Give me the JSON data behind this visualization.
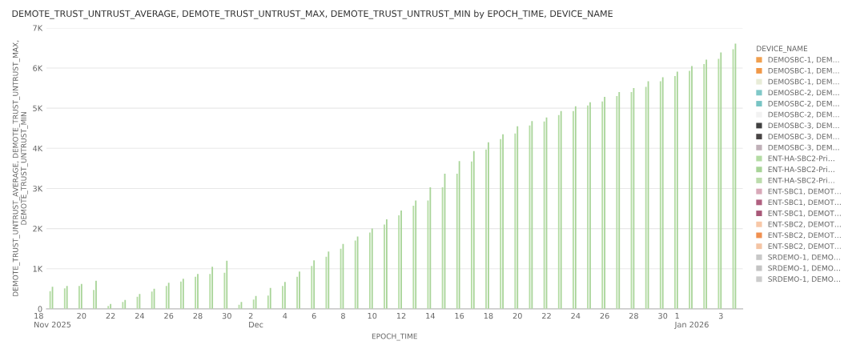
{
  "chart_data": {
    "type": "bar",
    "title": "DEMOTE_TRUST_UNTRUST_AVERAGE, DEMOTE_TRUST_UNTRUST_MAX, DEMOTE_TRUST_UNTRUST_MIN by EPOCH_TIME, DEVICE_NAME",
    "xlabel": "EPOCH_TIME",
    "ylabel": "DEMOTE_TRUST_UNTRUST_AVERAGE, DEMOTE_TRUST_UNTRUST_MAX,\nDEMOTE_TRUST_UNTRUST_MIN",
    "legend_title": "DEVICE_NAME",
    "legend": "right",
    "grid": "y",
    "x": [
      "2025-11-18",
      "2025-11-19",
      "2025-11-20",
      "2025-11-21",
      "2025-11-22",
      "2025-11-23",
      "2025-11-24",
      "2025-11-25",
      "2025-11-26",
      "2025-11-27",
      "2025-11-28",
      "2025-11-29",
      "2025-11-30",
      "2025-12-01",
      "2025-12-02",
      "2025-12-03",
      "2025-12-04",
      "2025-12-05",
      "2025-12-06",
      "2025-12-07",
      "2025-12-08",
      "2025-12-09",
      "2025-12-10",
      "2025-12-11",
      "2025-12-12",
      "2025-12-13",
      "2025-12-14",
      "2025-12-15",
      "2025-12-16",
      "2025-12-17",
      "2025-12-18",
      "2025-12-19",
      "2025-12-20",
      "2025-12-21",
      "2025-12-22",
      "2025-12-23",
      "2025-12-24",
      "2025-12-25",
      "2025-12-26",
      "2025-12-27",
      "2025-12-28",
      "2025-12-29",
      "2025-12-30",
      "2025-12-31",
      "2026-01-01",
      "2026-01-02",
      "2026-01-03",
      "2026-01-04"
    ],
    "xlim": [
      "2025-11-17T14:00",
      "2026-01-04T12:00"
    ],
    "xticks": [
      {
        "value": "2025-11-18",
        "label": "18\nNov 2025"
      },
      {
        "value": "2025-11-20",
        "label": "20"
      },
      {
        "value": "2025-11-22",
        "label": "22"
      },
      {
        "value": "2025-11-24",
        "label": "24"
      },
      {
        "value": "2025-11-26",
        "label": "26"
      },
      {
        "value": "2025-11-28",
        "label": "28"
      },
      {
        "value": "2025-11-30",
        "label": "30"
      },
      {
        "value": "2025-12-02",
        "label": "2\nDec"
      },
      {
        "value": "2025-12-04",
        "label": "4"
      },
      {
        "value": "2025-12-06",
        "label": "6"
      },
      {
        "value": "2025-12-08",
        "label": "8"
      },
      {
        "value": "2025-12-10",
        "label": "10"
      },
      {
        "value": "2025-12-12",
        "label": "12"
      },
      {
        "value": "2025-12-14",
        "label": "14"
      },
      {
        "value": "2025-12-16",
        "label": "16"
      },
      {
        "value": "2025-12-18",
        "label": "18"
      },
      {
        "value": "2025-12-20",
        "label": "20"
      },
      {
        "value": "2025-12-22",
        "label": "22"
      },
      {
        "value": "2025-12-24",
        "label": "24"
      },
      {
        "value": "2025-12-26",
        "label": "26"
      },
      {
        "value": "2025-12-28",
        "label": "28"
      },
      {
        "value": "2025-12-30",
        "label": "30"
      },
      {
        "value": "2026-01-01",
        "label": "1\nJan 2026"
      },
      {
        "value": "2026-01-03",
        "label": "3"
      }
    ],
    "ylim": [
      0,
      7000
    ],
    "yticks": [
      0,
      {
        "value": 1000,
        "label": "1K"
      },
      {
        "value": 2000,
        "label": "2K"
      },
      {
        "value": 3000,
        "label": "3K"
      },
      {
        "value": 4000,
        "label": "4K"
      },
      {
        "value": 5000,
        "label": "5K"
      },
      {
        "value": 6000,
        "label": "6K"
      },
      {
        "value": 7000,
        "label": "7K"
      }
    ],
    "series": [
      {
        "name": "DEMOSBC-1, DEM…",
        "color": "#f0a050",
        "values": [
          null,
          null,
          null,
          null,
          null,
          null,
          null,
          null,
          null,
          null,
          null,
          null,
          null,
          null,
          null,
          null,
          null,
          null,
          null,
          null,
          null,
          null,
          null,
          null,
          null,
          null,
          null,
          null,
          null,
          null,
          null,
          null,
          null,
          null,
          null,
          null,
          null,
          null,
          null,
          null,
          null,
          null,
          null,
          null,
          null,
          null,
          null,
          null
        ]
      },
      {
        "name": "DEMOSBC-1, DEM…",
        "color": "#f09848",
        "values": [
          null,
          null,
          null,
          null,
          null,
          null,
          null,
          null,
          null,
          null,
          null,
          null,
          null,
          null,
          null,
          null,
          null,
          null,
          null,
          null,
          null,
          null,
          null,
          null,
          null,
          null,
          null,
          null,
          null,
          null,
          null,
          null,
          null,
          null,
          null,
          null,
          null,
          null,
          null,
          null,
          null,
          null,
          null,
          null,
          null,
          null,
          null,
          null
        ]
      },
      {
        "name": "DEMOSBC-1, DEM…",
        "color": "#e8ecd8",
        "values": [
          null,
          null,
          null,
          null,
          null,
          null,
          null,
          null,
          null,
          null,
          null,
          null,
          null,
          null,
          null,
          null,
          null,
          null,
          null,
          null,
          null,
          null,
          null,
          null,
          null,
          null,
          null,
          null,
          null,
          null,
          null,
          null,
          null,
          null,
          null,
          null,
          null,
          null,
          null,
          null,
          null,
          null,
          null,
          null,
          null,
          null,
          null,
          null
        ]
      },
      {
        "name": "DEMOSBC-2, DEM…",
        "color": "#80c8c8",
        "values": [
          null,
          null,
          null,
          null,
          null,
          null,
          null,
          null,
          null,
          null,
          null,
          null,
          null,
          null,
          null,
          null,
          null,
          null,
          null,
          null,
          null,
          null,
          null,
          null,
          null,
          null,
          null,
          null,
          null,
          null,
          null,
          null,
          null,
          null,
          null,
          null,
          null,
          null,
          null,
          null,
          null,
          null,
          null,
          null,
          null,
          null,
          null,
          null
        ]
      },
      {
        "name": "DEMOSBC-2, DEM…",
        "color": "#78c4c4",
        "values": [
          null,
          null,
          null,
          null,
          null,
          null,
          null,
          null,
          null,
          null,
          null,
          null,
          null,
          null,
          null,
          null,
          null,
          null,
          null,
          null,
          null,
          null,
          null,
          null,
          null,
          null,
          null,
          null,
          null,
          null,
          null,
          null,
          null,
          null,
          null,
          null,
          null,
          null,
          null,
          null,
          null,
          null,
          null,
          null,
          null,
          null,
          null,
          null
        ]
      },
      {
        "name": "DEMOSBC-2, DEM…",
        "color": "#f2f2f2",
        "values": [
          null,
          null,
          null,
          null,
          null,
          null,
          null,
          null,
          null,
          null,
          null,
          null,
          null,
          null,
          null,
          null,
          null,
          null,
          null,
          null,
          null,
          null,
          null,
          null,
          null,
          null,
          null,
          null,
          null,
          null,
          null,
          null,
          null,
          null,
          null,
          null,
          null,
          null,
          null,
          null,
          null,
          null,
          null,
          null,
          null,
          null,
          null,
          null
        ]
      },
      {
        "name": "DEMOSBC-3, DEM…",
        "color": "#404040",
        "values": [
          null,
          null,
          null,
          null,
          null,
          null,
          null,
          null,
          null,
          null,
          null,
          null,
          null,
          null,
          null,
          null,
          null,
          null,
          null,
          null,
          null,
          null,
          null,
          null,
          null,
          null,
          null,
          null,
          null,
          null,
          null,
          null,
          null,
          null,
          null,
          null,
          null,
          null,
          null,
          null,
          null,
          null,
          null,
          null,
          null,
          null,
          null,
          null
        ]
      },
      {
        "name": "DEMOSBC-3, DEM…",
        "color": "#484444",
        "values": [
          null,
          null,
          null,
          null,
          null,
          null,
          null,
          null,
          null,
          null,
          null,
          null,
          null,
          null,
          null,
          null,
          null,
          null,
          null,
          null,
          null,
          null,
          null,
          null,
          null,
          null,
          null,
          null,
          null,
          null,
          null,
          null,
          null,
          null,
          null,
          null,
          null,
          null,
          null,
          null,
          null,
          null,
          null,
          null,
          null,
          null,
          null,
          null
        ]
      },
      {
        "name": "DEMOSBC-3, DEM…",
        "color": "#c0b0b8",
        "values": [
          null,
          null,
          null,
          null,
          null,
          null,
          null,
          null,
          null,
          null,
          null,
          null,
          null,
          null,
          null,
          null,
          null,
          null,
          null,
          null,
          null,
          null,
          null,
          null,
          null,
          null,
          null,
          null,
          null,
          null,
          null,
          null,
          null,
          null,
          null,
          null,
          null,
          null,
          null,
          null,
          null,
          null,
          null,
          null,
          null,
          null,
          null,
          null
        ]
      },
      {
        "name": "ENT-HA-SBC2-Pri…",
        "color": "#b4dca4",
        "values": [
          440,
          510,
          570,
          470,
          70,
          170,
          300,
          430,
          570,
          680,
          800,
          870,
          900,
          100,
          230,
          330,
          570,
          800,
          1070,
          1300,
          1500,
          1700,
          1900,
          2100,
          2330,
          2570,
          2700,
          3030,
          3370,
          3670,
          3970,
          4230,
          4370,
          4570,
          4670,
          4830,
          4930,
          5070,
          5170,
          5300,
          5400,
          5530,
          5670,
          5800,
          5930,
          6100,
          6230,
          6470
        ]
      },
      {
        "name": "ENT-HA-SBC2-Pri…",
        "color": "#a8d498",
        "values": [
          550,
          570,
          620,
          700,
          120,
          220,
          370,
          500,
          650,
          750,
          870,
          1050,
          1200,
          170,
          320,
          520,
          670,
          930,
          1210,
          1430,
          1620,
          1800,
          2000,
          2230,
          2450,
          2700,
          3030,
          3370,
          3680,
          3930,
          4150,
          4350,
          4550,
          4680,
          4770,
          4930,
          5050,
          5150,
          5280,
          5400,
          5500,
          5670,
          5770,
          5910,
          6050,
          6210,
          6390,
          6610
        ]
      },
      {
        "name": "ENT-HA-SBC2-Pri…",
        "color": "#bcdcac",
        "values": [
          null,
          null,
          null,
          null,
          null,
          null,
          null,
          null,
          null,
          null,
          null,
          null,
          null,
          null,
          null,
          null,
          null,
          null,
          null,
          null,
          null,
          null,
          null,
          null,
          null,
          null,
          null,
          null,
          null,
          null,
          null,
          null,
          null,
          null,
          null,
          null,
          null,
          null,
          null,
          null,
          null,
          null,
          null,
          null,
          null,
          null,
          null,
          null
        ]
      },
      {
        "name": "ENT-SBC1, DEMOT…",
        "color": "#d8a8b8",
        "values": [
          null,
          null,
          null,
          null,
          null,
          null,
          null,
          null,
          null,
          null,
          null,
          null,
          null,
          null,
          null,
          null,
          null,
          null,
          null,
          null,
          null,
          null,
          null,
          null,
          null,
          null,
          null,
          null,
          null,
          null,
          null,
          null,
          null,
          null,
          null,
          null,
          null,
          null,
          null,
          null,
          null,
          null,
          null,
          null,
          null,
          null,
          null,
          null
        ]
      },
      {
        "name": "ENT-SBC1, DEMOT…",
        "color": "#b06080",
        "values": [
          null,
          null,
          null,
          null,
          null,
          null,
          null,
          null,
          null,
          null,
          null,
          null,
          null,
          null,
          null,
          null,
          null,
          null,
          null,
          null,
          null,
          null,
          null,
          null,
          null,
          null,
          null,
          null,
          null,
          null,
          null,
          null,
          null,
          null,
          null,
          null,
          null,
          null,
          null,
          null,
          null,
          null,
          null,
          null,
          null,
          null,
          null,
          null
        ]
      },
      {
        "name": "ENT-SBC1, DEMOT…",
        "color": "#a85878",
        "values": [
          null,
          null,
          null,
          null,
          null,
          null,
          null,
          null,
          null,
          null,
          null,
          null,
          null,
          null,
          null,
          null,
          null,
          null,
          null,
          null,
          null,
          null,
          null,
          null,
          null,
          null,
          null,
          null,
          null,
          null,
          null,
          null,
          null,
          null,
          null,
          null,
          null,
          null,
          null,
          null,
          null,
          null,
          null,
          null,
          null,
          null,
          null,
          null
        ]
      },
      {
        "name": "ENT-SBC2, DEMOT…",
        "color": "#f8c8a8",
        "values": [
          null,
          null,
          null,
          null,
          null,
          null,
          null,
          null,
          null,
          null,
          null,
          null,
          null,
          null,
          null,
          null,
          null,
          null,
          null,
          null,
          null,
          null,
          null,
          null,
          null,
          null,
          null,
          null,
          null,
          null,
          null,
          null,
          null,
          null,
          null,
          null,
          null,
          null,
          null,
          null,
          null,
          null,
          null,
          null,
          null,
          null,
          null,
          null
        ]
      },
      {
        "name": "ENT-SBC2, DEMOT…",
        "color": "#f09050",
        "values": [
          null,
          null,
          null,
          null,
          null,
          null,
          null,
          null,
          null,
          null,
          null,
          null,
          null,
          null,
          null,
          null,
          null,
          null,
          null,
          null,
          null,
          null,
          null,
          null,
          null,
          null,
          null,
          null,
          null,
          null,
          null,
          null,
          null,
          null,
          null,
          null,
          null,
          null,
          null,
          null,
          null,
          null,
          null,
          null,
          null,
          null,
          null,
          null
        ]
      },
      {
        "name": "ENT-SBC2, DEMOT…",
        "color": "#f4c4a4",
        "values": [
          null,
          null,
          null,
          null,
          null,
          null,
          null,
          null,
          null,
          null,
          null,
          null,
          null,
          null,
          null,
          null,
          null,
          null,
          null,
          null,
          null,
          null,
          null,
          null,
          null,
          null,
          null,
          null,
          null,
          null,
          null,
          null,
          null,
          null,
          null,
          null,
          null,
          null,
          null,
          null,
          null,
          null,
          null,
          null,
          null,
          null,
          null,
          null
        ]
      },
      {
        "name": "SRDEMO-1, DEMO…",
        "color": "#c8c8c8",
        "values": [
          null,
          null,
          null,
          null,
          null,
          null,
          null,
          null,
          null,
          null,
          null,
          null,
          null,
          null,
          null,
          null,
          null,
          null,
          null,
          null,
          null,
          null,
          null,
          null,
          null,
          null,
          null,
          null,
          null,
          null,
          null,
          null,
          null,
          null,
          null,
          null,
          null,
          null,
          null,
          null,
          null,
          null,
          null,
          null,
          null,
          null,
          null,
          null
        ]
      },
      {
        "name": "SRDEMO-1, DEMO…",
        "color": "#c4c4c4",
        "values": [
          null,
          null,
          null,
          null,
          null,
          null,
          null,
          null,
          null,
          null,
          null,
          null,
          null,
          null,
          null,
          null,
          null,
          null,
          null,
          null,
          null,
          null,
          null,
          null,
          null,
          null,
          null,
          null,
          null,
          null,
          null,
          null,
          null,
          null,
          null,
          null,
          null,
          null,
          null,
          null,
          null,
          null,
          null,
          null,
          null,
          null,
          null,
          null
        ]
      },
      {
        "name": "SRDEMO-1, DEMO…",
        "color": "#cccccc",
        "values": [
          null,
          null,
          null,
          null,
          null,
          null,
          null,
          null,
          null,
          null,
          null,
          null,
          null,
          null,
          null,
          null,
          null,
          null,
          null,
          null,
          null,
          null,
          null,
          null,
          null,
          null,
          null,
          null,
          null,
          null,
          null,
          null,
          null,
          null,
          null,
          null,
          null,
          null,
          null,
          null,
          null,
          null,
          null,
          null,
          null,
          null,
          null,
          null
        ]
      }
    ]
  }
}
